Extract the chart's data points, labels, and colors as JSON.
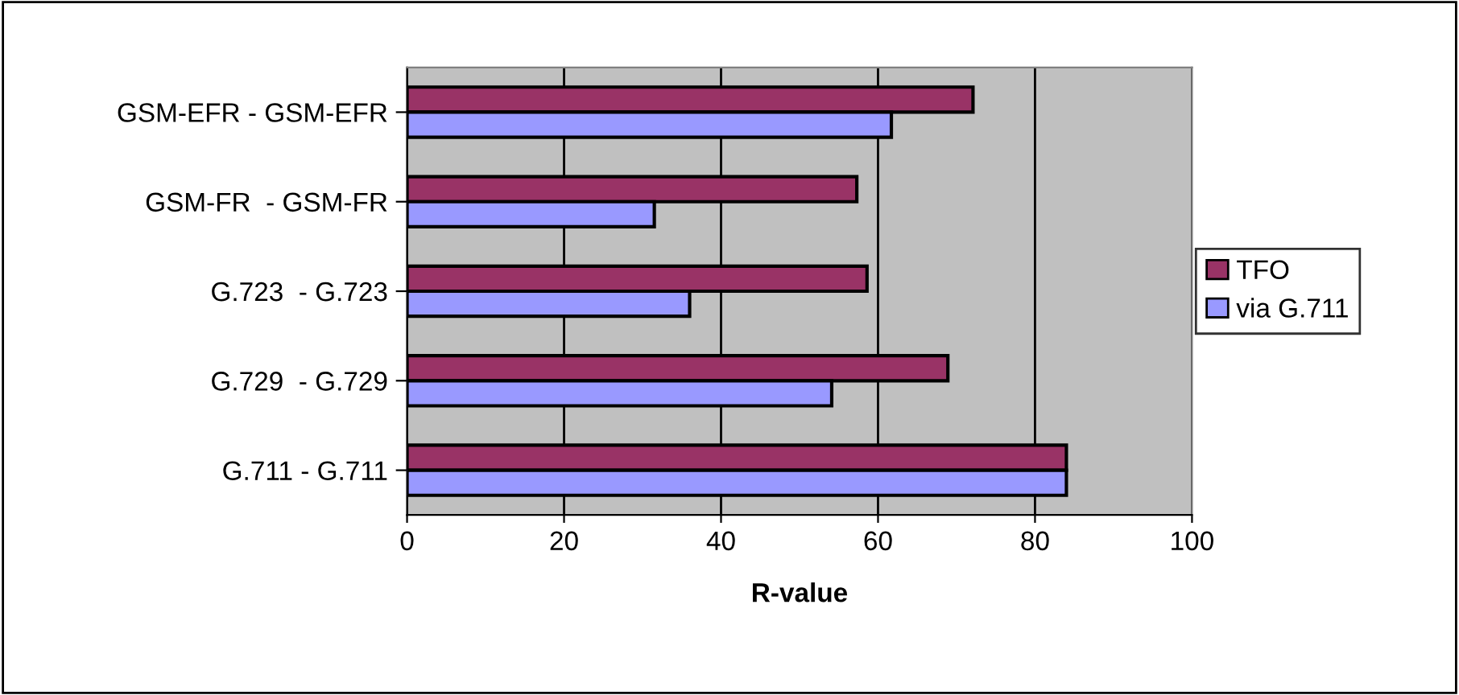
{
  "chart_data": {
    "type": "bar",
    "orientation": "horizontal",
    "xlabel": "R-value",
    "categories": [
      "GSM-EFR - GSM-EFR",
      "GSM-FR  - GSM-FR",
      "G.723  - G.723",
      "G.729  - G.729",
      "G.711 - G.711"
    ],
    "series": [
      {
        "name": "TFO",
        "color": "#993366",
        "values": [
          72.1,
          57.3,
          58.6,
          68.9,
          84.0
        ]
      },
      {
        "name": "via G.711",
        "color": "#9999ff",
        "values": [
          61.7,
          31.5,
          36.0,
          54.1,
          84.0
        ]
      }
    ],
    "xlim": [
      0,
      100
    ],
    "xticks": [
      0,
      20,
      40,
      60,
      80,
      100
    ],
    "grid": "x",
    "legend": "right"
  }
}
